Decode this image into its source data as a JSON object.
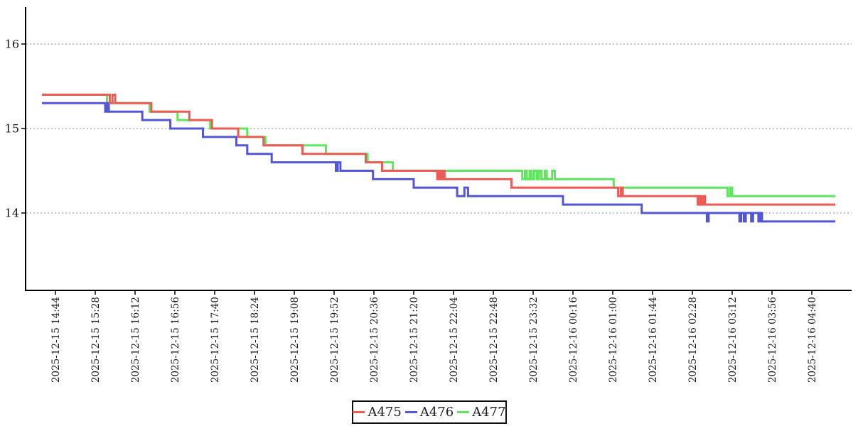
{
  "chart_data": {
    "type": "line",
    "title": "",
    "x_axis": {
      "label": "",
      "time_unit": "minutes since 2025-12-15 00:00",
      "tick_labels": [
        "2025-12-15 14:44",
        "2025-12-15 15:28",
        "2025-12-15 16:12",
        "2025-12-15 16:56",
        "2025-12-15 17:40",
        "2025-12-15 18:24",
        "2025-12-15 19:08",
        "2025-12-15 19:52",
        "2025-12-15 20:36",
        "2025-12-15 21:20",
        "2025-12-15 22:04",
        "2025-12-15 22:48",
        "2025-12-15 23:32",
        "2025-12-16 00:16",
        "2025-12-16 01:00",
        "2025-12-16 01:44",
        "2025-12-16 02:28",
        "2025-12-16 03:12",
        "2025-12-16 03:56",
        "2025-12-16 04:40"
      ],
      "tick_minutes": [
        884,
        928,
        972,
        1016,
        1060,
        1104,
        1148,
        1192,
        1236,
        1280,
        1324,
        1368,
        1412,
        1456,
        1500,
        1544,
        1588,
        1632,
        1676,
        1720
      ],
      "tick_interval_minutes": 44,
      "labels_rotated_deg": 90,
      "data_start_min": 869,
      "data_end_min": 1746
    },
    "y_axis": {
      "label": "",
      "ticks": [
        16,
        15,
        14
      ],
      "range_approx": [
        13.1,
        16.45
      ],
      "grid": "dotted"
    },
    "legend": {
      "position": "bottom-center",
      "entries": [
        "A475",
        "A476",
        "A477"
      ]
    },
    "series": [
      {
        "name": "A475",
        "color": "#ee5a55",
        "points": [
          [
            869,
            15.4
          ],
          [
            944,
            15.3
          ],
          [
            947,
            15.4
          ],
          [
            950,
            15.3
          ],
          [
            990,
            15.2
          ],
          [
            1032,
            15.1
          ],
          [
            1057,
            15.0
          ],
          [
            1086,
            14.9
          ],
          [
            1114,
            14.8
          ],
          [
            1157,
            14.7
          ],
          [
            1227,
            14.6
          ],
          [
            1245,
            14.5
          ],
          [
            1306,
            14.4
          ],
          [
            1308,
            14.5
          ],
          [
            1310,
            14.4
          ],
          [
            1312,
            14.5
          ],
          [
            1314,
            14.4
          ],
          [
            1388,
            14.3
          ],
          [
            1506,
            14.2
          ],
          [
            1509,
            14.3
          ],
          [
            1511,
            14.2
          ],
          [
            1594,
            14.1
          ],
          [
            1596,
            14.2
          ],
          [
            1598,
            14.1
          ],
          [
            1600,
            14.2
          ],
          [
            1602,
            14.1
          ]
        ]
      },
      {
        "name": "A476",
        "color": "#5456d8",
        "points": [
          [
            869,
            15.3
          ],
          [
            939,
            15.2
          ],
          [
            941,
            15.3
          ],
          [
            943,
            15.2
          ],
          [
            980,
            15.1
          ],
          [
            1011,
            15.0
          ],
          [
            1047,
            14.9
          ],
          [
            1084,
            14.8
          ],
          [
            1096,
            14.7
          ],
          [
            1123,
            14.6
          ],
          [
            1194,
            14.5
          ],
          [
            1196,
            14.6
          ],
          [
            1199,
            14.5
          ],
          [
            1235,
            14.4
          ],
          [
            1280,
            14.3
          ],
          [
            1328,
            14.2
          ],
          [
            1336,
            14.3
          ],
          [
            1340,
            14.2
          ],
          [
            1445,
            14.1
          ],
          [
            1532,
            14.0
          ],
          [
            1604,
            13.9
          ],
          [
            1606,
            14.0
          ],
          [
            1640,
            13.9
          ],
          [
            1642,
            14.0
          ],
          [
            1645,
            13.9
          ],
          [
            1647,
            14.0
          ],
          [
            1653,
            13.9
          ],
          [
            1655,
            14.0
          ],
          [
            1661,
            13.9
          ],
          [
            1663,
            14.0
          ],
          [
            1665,
            13.9
          ]
        ]
      },
      {
        "name": "A477",
        "color": "#5ee65e",
        "points": [
          [
            869,
            15.4
          ],
          [
            941,
            15.3
          ],
          [
            988,
            15.2
          ],
          [
            1019,
            15.1
          ],
          [
            1055,
            15.0
          ],
          [
            1096,
            14.9
          ],
          [
            1116,
            14.8
          ],
          [
            1183,
            14.7
          ],
          [
            1229,
            14.6
          ],
          [
            1257,
            14.5
          ],
          [
            1400,
            14.4
          ],
          [
            1403,
            14.5
          ],
          [
            1405,
            14.4
          ],
          [
            1408,
            14.5
          ],
          [
            1410,
            14.4
          ],
          [
            1413,
            14.5
          ],
          [
            1416,
            14.4
          ],
          [
            1418,
            14.5
          ],
          [
            1421,
            14.4
          ],
          [
            1425,
            14.5
          ],
          [
            1427,
            14.4
          ],
          [
            1433,
            14.5
          ],
          [
            1436,
            14.4
          ],
          [
            1501,
            14.3
          ],
          [
            1627,
            14.2
          ],
          [
            1630,
            14.3
          ],
          [
            1632,
            14.2
          ]
        ]
      }
    ]
  }
}
